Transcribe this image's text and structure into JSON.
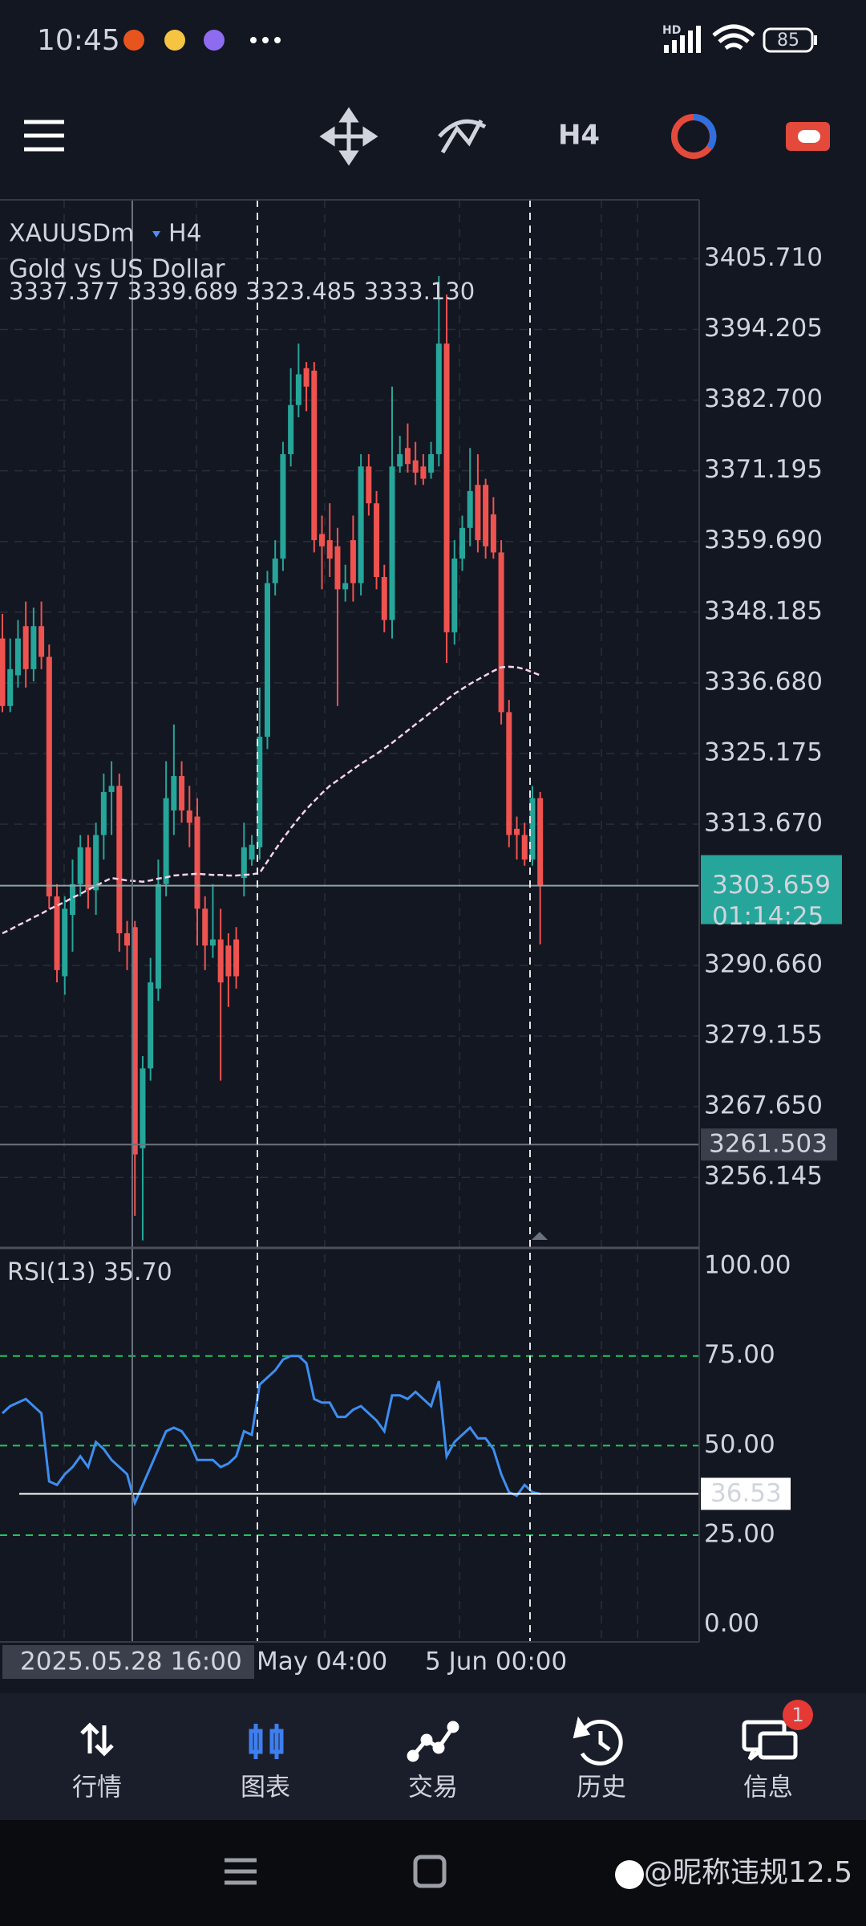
{
  "status_bar": {
    "time": "10:45",
    "network": "HD",
    "battery": 85
  },
  "toolbar": {
    "timeframe": "H4"
  },
  "chart_data": {
    "type": "candlestick",
    "symbol": "XAUUSDm",
    "timeframe": "H4",
    "subtitle": "Gold vs US Dollar",
    "ohlc_label": "3337.377 3339.689 3323.485 3333.130",
    "up_color": "#26a69a",
    "down_color": "#ef5350",
    "open": [
      3343.9,
      3332.9,
      3337.9,
      3345.9,
      3338.9,
      3345.9,
      3340.9,
      3301.9,
      3288.9,
      3298.9,
      3303.9,
      3309.9,
      3302.9,
      3311.9,
      3318.9,
      3319.9,
      3295.9,
      3296.9,
      3260.9,
      3273.9,
      3286.9,
      3303.9,
      3315.9,
      3321.5,
      3315.9,
      3314.9,
      3299.9,
      3293.9,
      3294.9,
      3293.9,
      3294.9,
      3304.9,
      3307.9,
      3309.9,
      3327.9,
      3352.9,
      3356.9,
      3373.9,
      3381.9,
      3387.9,
      3387.5,
      3360.9,
      3359.9,
      3358.9,
      3351.9,
      3359.9,
      3352.9,
      3371.9,
      3365.9,
      3353.9,
      3346.9,
      3371.9,
      3374.9,
      3372.9,
      3371.9,
      3370.9,
      3373.9,
      3391.9,
      3344.9,
      3356.9,
      3361.9,
      3368.9,
      3368.9,
      3364.1,
      3357.9,
      3331.9,
      3312.9,
      3311.9,
      3307.9,
      3317.9
    ],
    "high": [
      3347.9,
      3343.9,
      3346.9,
      3349.9,
      3348.9,
      3349.9,
      3342.9,
      3303.9,
      3301.9,
      3307.9,
      3311.9,
      3311.9,
      3313.9,
      3321.9,
      3323.9,
      3321.9,
      3297.9,
      3297.9,
      3275.9,
      3291.9,
      3307.9,
      3323.9,
      3329.9,
      3323.9,
      3319.9,
      3317.9,
      3301.9,
      3303.9,
      3299.9,
      3295.9,
      3296.9,
      3313.9,
      3311.9,
      3335.9,
      3354.9,
      3359.9,
      3375.9,
      3387.9,
      3391.9,
      3388.9,
      3388.9,
      3363.9,
      3365.9,
      3361.9,
      3355.9,
      3363.9,
      3373.9,
      3373.9,
      3367.9,
      3355.9,
      3384.9,
      3376.9,
      3378.9,
      3375.9,
      3373.9,
      3375.9,
      3402.9,
      3399.9,
      3359.9,
      3363.9,
      3374.9,
      3373.9,
      3369.9,
      3366.9,
      3359.9,
      3333.9,
      3314.9,
      3313.9,
      3319.9,
      3318.9
    ],
    "low": [
      3331.9,
      3331.9,
      3335.9,
      3335.9,
      3336.9,
      3338.9,
      3299.9,
      3287.9,
      3285.9,
      3292.9,
      3301.9,
      3299.9,
      3298.9,
      3307.9,
      3311.9,
      3292.9,
      3289.9,
      3249.9,
      3245.9,
      3271.9,
      3284.9,
      3301.9,
      3311.9,
      3313.9,
      3309.9,
      3293.9,
      3289.9,
      3291.9,
      3271.9,
      3283.9,
      3286.9,
      3301.9,
      3306.9,
      3307.9,
      3325.9,
      3350.9,
      3354.9,
      3371.9,
      3379.9,
      3380.9,
      3357.9,
      3351.9,
      3353.9,
      3332.9,
      3349.9,
      3349.9,
      3350.9,
      3363.9,
      3351.9,
      3344.9,
      3343.9,
      3370.9,
      3370.9,
      3368.9,
      3368.9,
      3369.9,
      3371.9,
      3339.9,
      3342.9,
      3354.9,
      3358.9,
      3357.9,
      3356.9,
      3356.9,
      3329.9,
      3309.9,
      3307.9,
      3306.9,
      3306.9,
      3294.1
    ],
    "close": [
      3332.9,
      3338.9,
      3343.9,
      3338.9,
      3345.9,
      3340.9,
      3301.9,
      3289.9,
      3299.9,
      3303.9,
      3309.9,
      3302.9,
      3311.9,
      3318.9,
      3319.9,
      3295.9,
      3293.9,
      3259.9,
      3273.9,
      3287.9,
      3303.9,
      3317.9,
      3321.5,
      3315.9,
      3313.9,
      3299.9,
      3293.9,
      3294.9,
      3287.9,
      3288.9,
      3288.9,
      3309.9,
      3310.3,
      3327.9,
      3352.9,
      3356.9,
      3373.9,
      3381.9,
      3386.9,
      3384.9,
      3359.9,
      3358.9,
      3356.9,
      3351.9,
      3352.9,
      3352.9,
      3371.9,
      3365.9,
      3353.9,
      3346.9,
      3371.9,
      3373.9,
      3372.3,
      3370.9,
      3369.9,
      3373.9,
      3391.9,
      3344.9,
      3356.9,
      3361.9,
      3367.9,
      3359.9,
      3358.9,
      3357.9,
      3331.9,
      3311.9,
      3311.9,
      3307.9,
      3317.9,
      3303.659
    ],
    "ma": {
      "color": "#f7d4ea",
      "values": [
        3295.9,
        3296.5,
        3297.2,
        3297.8,
        3298.5,
        3299.1,
        3299.8,
        3300.4,
        3301.0,
        3301.7,
        3302.3,
        3303.0,
        3303.6,
        3304.3,
        3304.9,
        3304.7,
        3304.5,
        3304.4,
        3304.3,
        3304.5,
        3304.8,
        3305.0,
        3305.3,
        3305.4,
        3305.5,
        3305.6,
        3305.5,
        3305.4,
        3305.4,
        3305.3,
        3305.3,
        3305.4,
        3305.5,
        3305.7,
        3307.6,
        3309.5,
        3311.3,
        3313.0,
        3314.6,
        3316.1,
        3317.4,
        3318.7,
        3319.9,
        3320.8,
        3321.7,
        3322.6,
        3323.5,
        3324.3,
        3325.1,
        3326.0,
        3326.9,
        3327.9,
        3328.9,
        3329.9,
        3330.9,
        3331.9,
        3332.9,
        3333.9,
        3334.9,
        3335.7,
        3336.5,
        3337.2,
        3337.9,
        3338.6,
        3339.2,
        3339.3,
        3339.2,
        3338.9,
        3338.4,
        3337.9
      ]
    },
    "ylim": [
      3244.94,
      3415.31
    ],
    "yticks": [
      {
        "value": 3405.71,
        "label": "3405.710"
      },
      3394.205,
      {
        "value": 3382.7,
        "label": "3382.700"
      },
      3371.195,
      {
        "value": 3359.69,
        "label": "3359.690"
      },
      3348.185,
      {
        "value": 3336.68,
        "label": "3336.680"
      },
      3325.175,
      {
        "value": 3313.67,
        "label": "3313.670"
      },
      {
        "value": 3290.66,
        "label": "3290.660"
      },
      3279.155,
      {
        "value": 3267.65,
        "label": "3267.650"
      },
      3256.145
    ],
    "grid": true,
    "current_price": 3303.659,
    "countdown": "01:14:25",
    "crosshair_price": 3261.503,
    "crosshair_time": "2025.05.28 16:00",
    "time_labels": [
      "May 04:00",
      "5 Jun 00:00"
    ],
    "rsi": {
      "name": "RSI(13)",
      "value": {
        "value": 35.7,
        "label": "35.70"
      },
      "color": "#3d8ef0",
      "level_color": "#22c55e",
      "values": [
        59,
        61,
        62,
        63,
        61,
        59,
        40,
        39,
        42,
        44,
        47,
        44,
        51,
        49,
        46,
        44,
        42,
        34,
        39,
        44,
        49,
        54,
        55,
        54,
        51,
        46,
        46,
        46,
        44,
        45,
        47,
        54,
        53,
        67,
        69,
        71,
        74,
        75,
        75,
        73,
        63,
        62,
        62,
        58,
        58,
        60,
        61,
        59,
        57,
        54,
        64,
        64,
        63,
        65,
        63,
        61,
        68,
        47,
        51,
        53,
        55,
        52,
        52,
        49,
        42,
        37,
        36,
        39,
        37,
        36.53
      ],
      "ylim": [
        -4.8,
        104.5
      ],
      "yticks": [
        {
          "value": 100,
          "label": "100.00"
        },
        {
          "value": 75,
          "label": "75.00"
        },
        {
          "value": 50,
          "label": "50.00"
        },
        {
          "value": 25,
          "label": "25.00"
        },
        {
          "value": 0,
          "label": "0.00"
        }
      ],
      "last": 36.53
    }
  },
  "nav": {
    "items": [
      "行情",
      "图表",
      "交易",
      "历史",
      "信息"
    ],
    "active": 1,
    "badge": 1
  },
  "watermark": "@昵称违规12.5"
}
